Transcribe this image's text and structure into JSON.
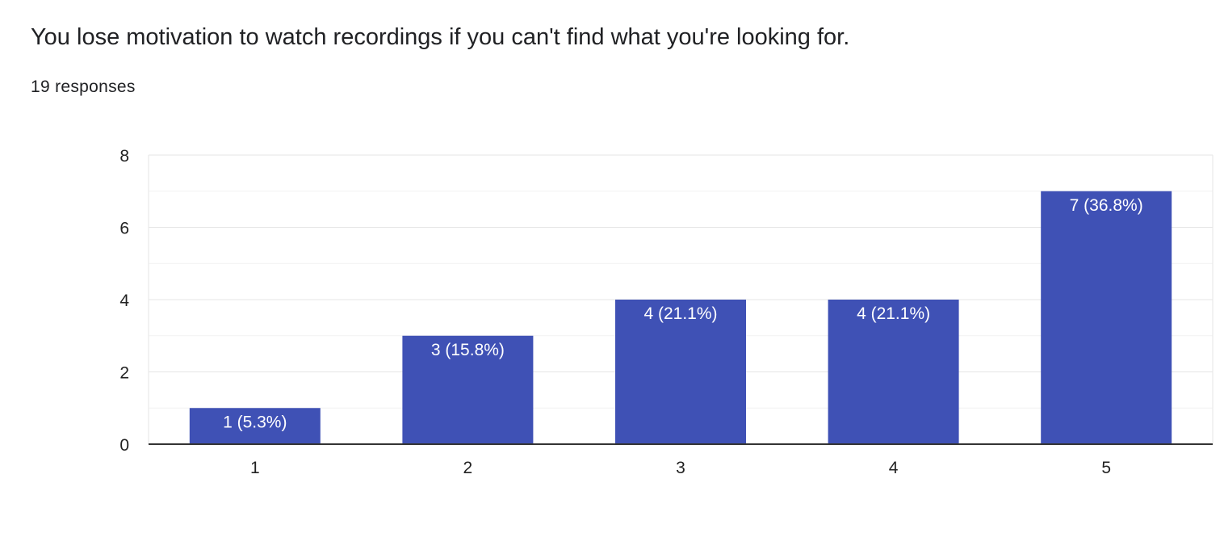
{
  "title": "You lose motivation to watch recordings if you can't find what you're looking for.",
  "responses": "19 responses",
  "chart_data": {
    "type": "bar",
    "categories": [
      "1",
      "2",
      "3",
      "4",
      "5"
    ],
    "values": [
      1,
      3,
      4,
      4,
      7
    ],
    "data_labels": [
      "1 (5.3%)",
      "3 (15.8%)",
      "4 (21.1%)",
      "4 (21.1%)",
      "7 (36.8%)"
    ],
    "ylim": [
      0,
      8
    ],
    "yticks": [
      "0",
      "2",
      "4",
      "6",
      "8"
    ],
    "bar_color": "#3f51b5",
    "grid": true,
    "legend": "none"
  }
}
